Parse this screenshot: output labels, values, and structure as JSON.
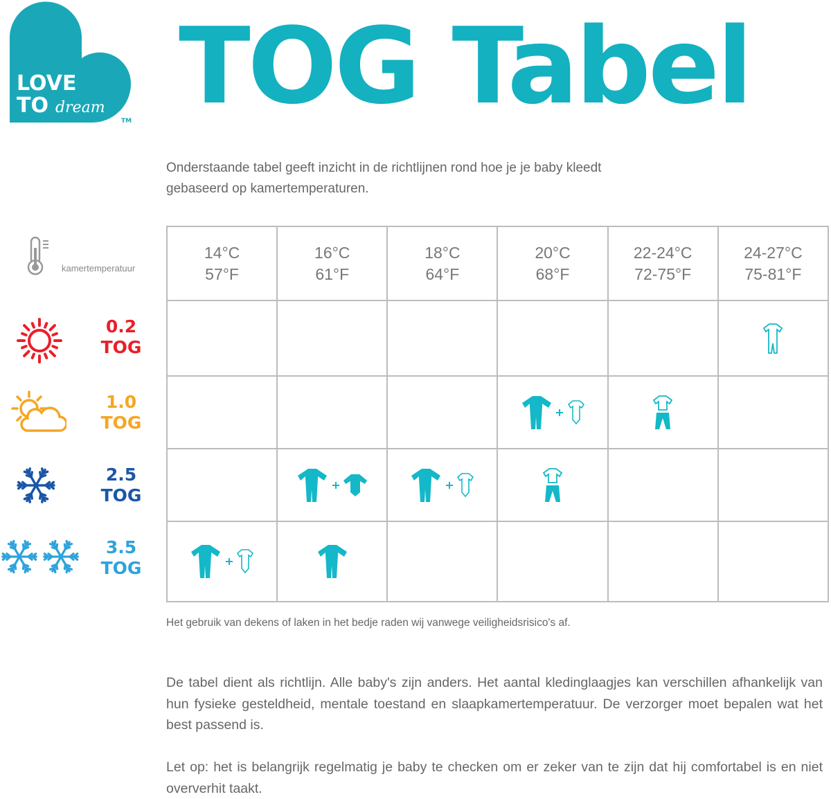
{
  "brand": {
    "logo_text": "LOVE TO dream",
    "trademark": "TM",
    "color": "#1aa8b8"
  },
  "title": "TOG Tabel",
  "intro": "Onderstaande tabel geeft inzicht in de richtlijnen rond hoe je je baby kleedt gebaseerd op kamertemperaturen.",
  "room_temp_label": "kamertemperatuur",
  "columns": [
    {
      "c": "14°C",
      "f": "57°F"
    },
    {
      "c": "16°C",
      "f": "61°F"
    },
    {
      "c": "18°C",
      "f": "64°F"
    },
    {
      "c": "20°C",
      "f": "68°F"
    },
    {
      "c": "22-24°C",
      "f": "72-75°F"
    },
    {
      "c": "24-27°C",
      "f": "75-81°F"
    }
  ],
  "rows": [
    {
      "value": "0.2",
      "unit": "TOG",
      "icon": "sun-icon",
      "color": "#e8202a",
      "cells": [
        [],
        [],
        [],
        [],
        [],
        [
          "romper-outline"
        ]
      ]
    },
    {
      "value": "1.0",
      "unit": "TOG",
      "icon": "sun-cloud-icon",
      "color": "#f5a623",
      "cells": [
        [],
        [],
        [],
        [
          "sleepsuit",
          "plus",
          "bodysuit-outline"
        ],
        [
          "tshirt-pants"
        ],
        []
      ]
    },
    {
      "value": "2.5",
      "unit": "TOG",
      "icon": "snowflake-icon",
      "color": "#1a56a8",
      "cells": [
        [],
        [
          "sleepsuit",
          "plus",
          "bodysuit-long-filled"
        ],
        [
          "sleepsuit",
          "plus",
          "bodysuit-outline"
        ],
        [
          "tshirt-pants"
        ],
        [],
        []
      ]
    },
    {
      "value": "3.5",
      "unit": "TOG",
      "icon": "double-snowflake-icon",
      "color": "#2ea3dc",
      "cells": [
        [
          "sleepsuit",
          "plus",
          "bodysuit-outline"
        ],
        [
          "sleepsuit"
        ],
        [],
        [],
        [],
        []
      ]
    }
  ],
  "accent": "#14b8c8",
  "note": "Het gebruik van dekens of laken in het bedje raden wij vanwege veiligheidsrisico's af.",
  "paragraphs": [
    "De tabel dient als richtlijn. Alle baby's zijn anders. Het aantal kledinglaagjes kan verschillen afhankelijk van hun fysieke gesteldheid, mentale toestand en slaapkamertemperatuur. De verzorger moet bepalen wat het best passend is.",
    "Let op: het is belangrijk regelmatig je baby te checken om er zeker van te zijn dat hij comfortabel is en niet oververhit taakt."
  ]
}
